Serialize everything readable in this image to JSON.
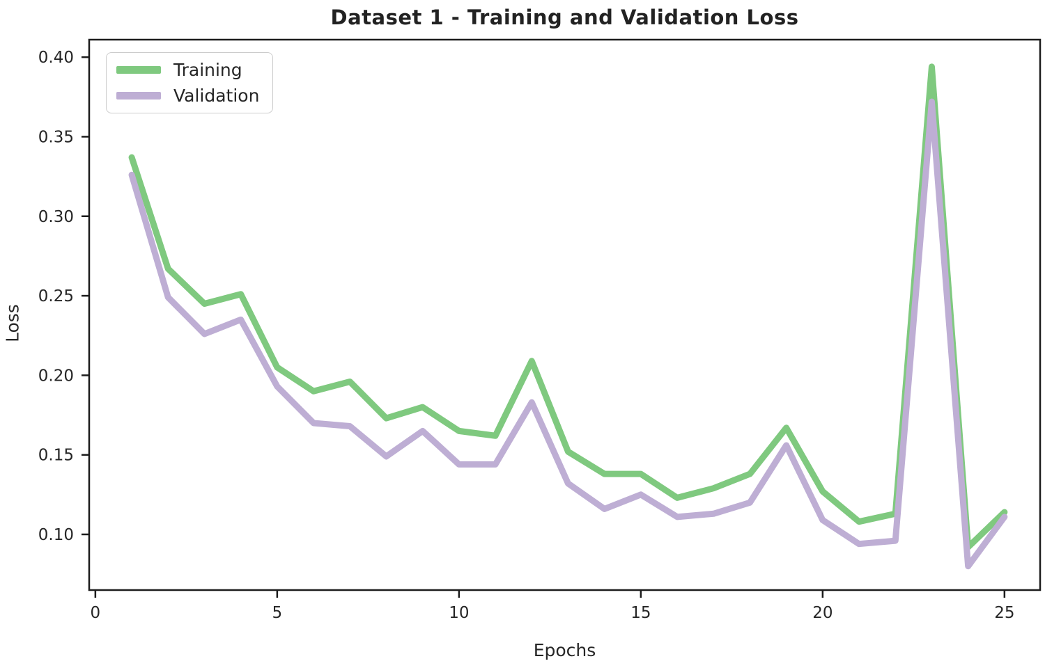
{
  "figure": {
    "title": "Dataset 1 - Training and Validation Loss"
  },
  "colors": {
    "training": "#7fc97f",
    "validation": "#beaed4",
    "text": "#262626",
    "axis": "#1c1c1c",
    "legend_border": "#cccccc",
    "background": "#ffffff"
  },
  "chart_data": {
    "type": "line",
    "title": "Dataset 1 - Training and Validation Loss",
    "xlabel": "Epochs",
    "ylabel": "Loss",
    "x": [
      1,
      2,
      3,
      4,
      5,
      6,
      7,
      8,
      9,
      10,
      11,
      12,
      13,
      14,
      15,
      16,
      17,
      18,
      19,
      20,
      21,
      22,
      23,
      24,
      25
    ],
    "series": [
      {
        "name": "Training",
        "color": "#7fc97f",
        "values": [
          0.337,
          0.267,
          0.245,
          0.251,
          0.205,
          0.19,
          0.196,
          0.173,
          0.18,
          0.165,
          0.162,
          0.209,
          0.152,
          0.138,
          0.138,
          0.123,
          0.129,
          0.138,
          0.167,
          0.127,
          0.108,
          0.113,
          0.394,
          0.092,
          0.114
        ]
      },
      {
        "name": "Validation",
        "color": "#beaed4",
        "values": [
          0.326,
          0.249,
          0.226,
          0.235,
          0.193,
          0.17,
          0.168,
          0.149,
          0.165,
          0.144,
          0.144,
          0.183,
          0.132,
          0.116,
          0.125,
          0.111,
          0.113,
          0.12,
          0.156,
          0.109,
          0.094,
          0.096,
          0.372,
          0.08,
          0.111
        ]
      }
    ],
    "xticks": [
      0,
      5,
      10,
      15,
      20,
      25
    ],
    "xtick_labels": [
      "0",
      "5",
      "10",
      "15",
      "20",
      "25"
    ],
    "yticks": [
      0.1,
      0.15,
      0.2,
      0.25,
      0.3,
      0.35,
      0.4
    ],
    "ytick_labels": [
      "0.10",
      "0.15",
      "0.20",
      "0.25",
      "0.30",
      "0.35",
      "0.40"
    ],
    "xlim": [
      -0.17,
      25.98
    ],
    "ylim": [
      0.065,
      0.411
    ],
    "grid": false,
    "legend_position": "upper left",
    "line_width": 9
  }
}
